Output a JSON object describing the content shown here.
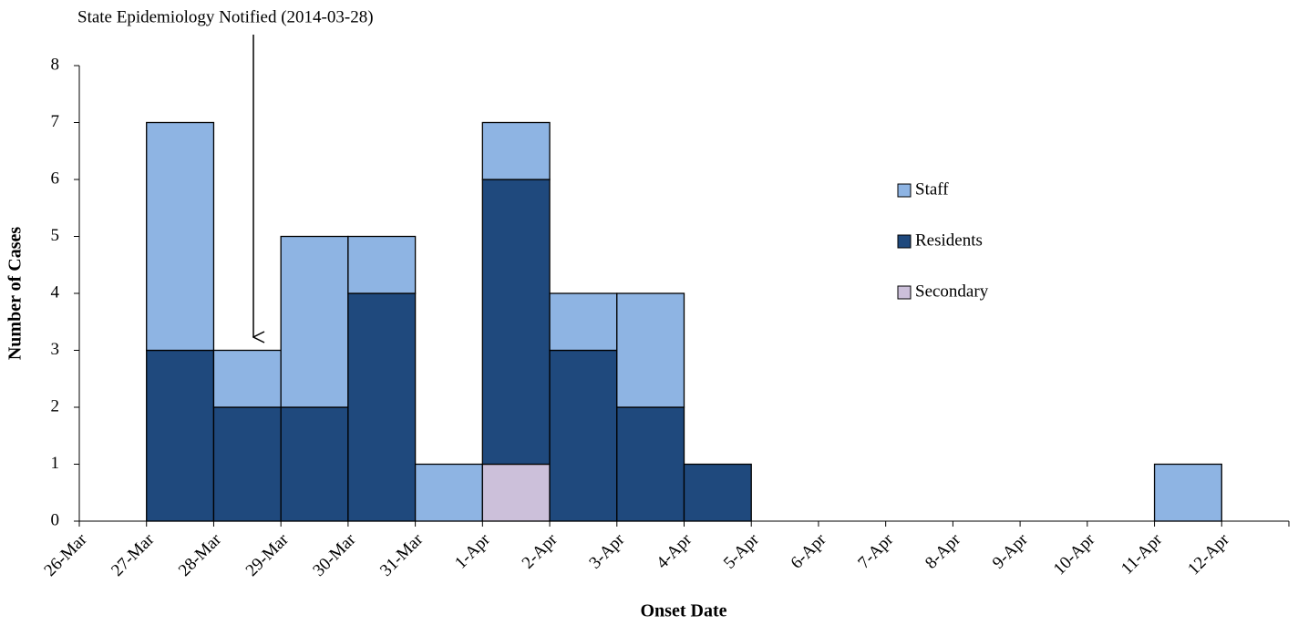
{
  "chart_data": {
    "type": "histogram",
    "annotation": "State Epidemiology Notified  (2014-03-28)",
    "xlabel": "Onset Date",
    "ylabel": "Number of Cases",
    "bins": [
      "26-Mar",
      "27-Mar",
      "28-Mar",
      "29-Mar",
      "30-Mar",
      "31-Mar",
      "1-Apr",
      "2-Apr",
      "3-Apr",
      "4-Apr",
      "5-Apr",
      "6-Apr",
      "7-Apr",
      "8-Apr",
      "9-Apr",
      "10-Apr",
      "11-Apr",
      "12-Apr"
    ],
    "series": [
      {
        "name": "Staff",
        "color": "#8eb4e3",
        "values": [
          0,
          4,
          1,
          3,
          1,
          1,
          1,
          1,
          2,
          0,
          0,
          0,
          0,
          0,
          0,
          0,
          1
        ]
      },
      {
        "name": "Residents",
        "color": "#1f497d",
        "values": [
          0,
          3,
          2,
          2,
          4,
          0,
          5,
          3,
          2,
          1,
          0,
          0,
          0,
          0,
          0,
          0,
          0
        ]
      },
      {
        "name": "Secondary",
        "color": "#ccc0da",
        "values": [
          0,
          0,
          0,
          0,
          0,
          0,
          1,
          0,
          0,
          0,
          0,
          0,
          0,
          0,
          0,
          0,
          0
        ]
      }
    ],
    "stacked": true,
    "ylim": [
      0,
      8
    ],
    "yticks": [
      0,
      1,
      2,
      3,
      4,
      5,
      6,
      7,
      8
    ],
    "legend": "right"
  }
}
